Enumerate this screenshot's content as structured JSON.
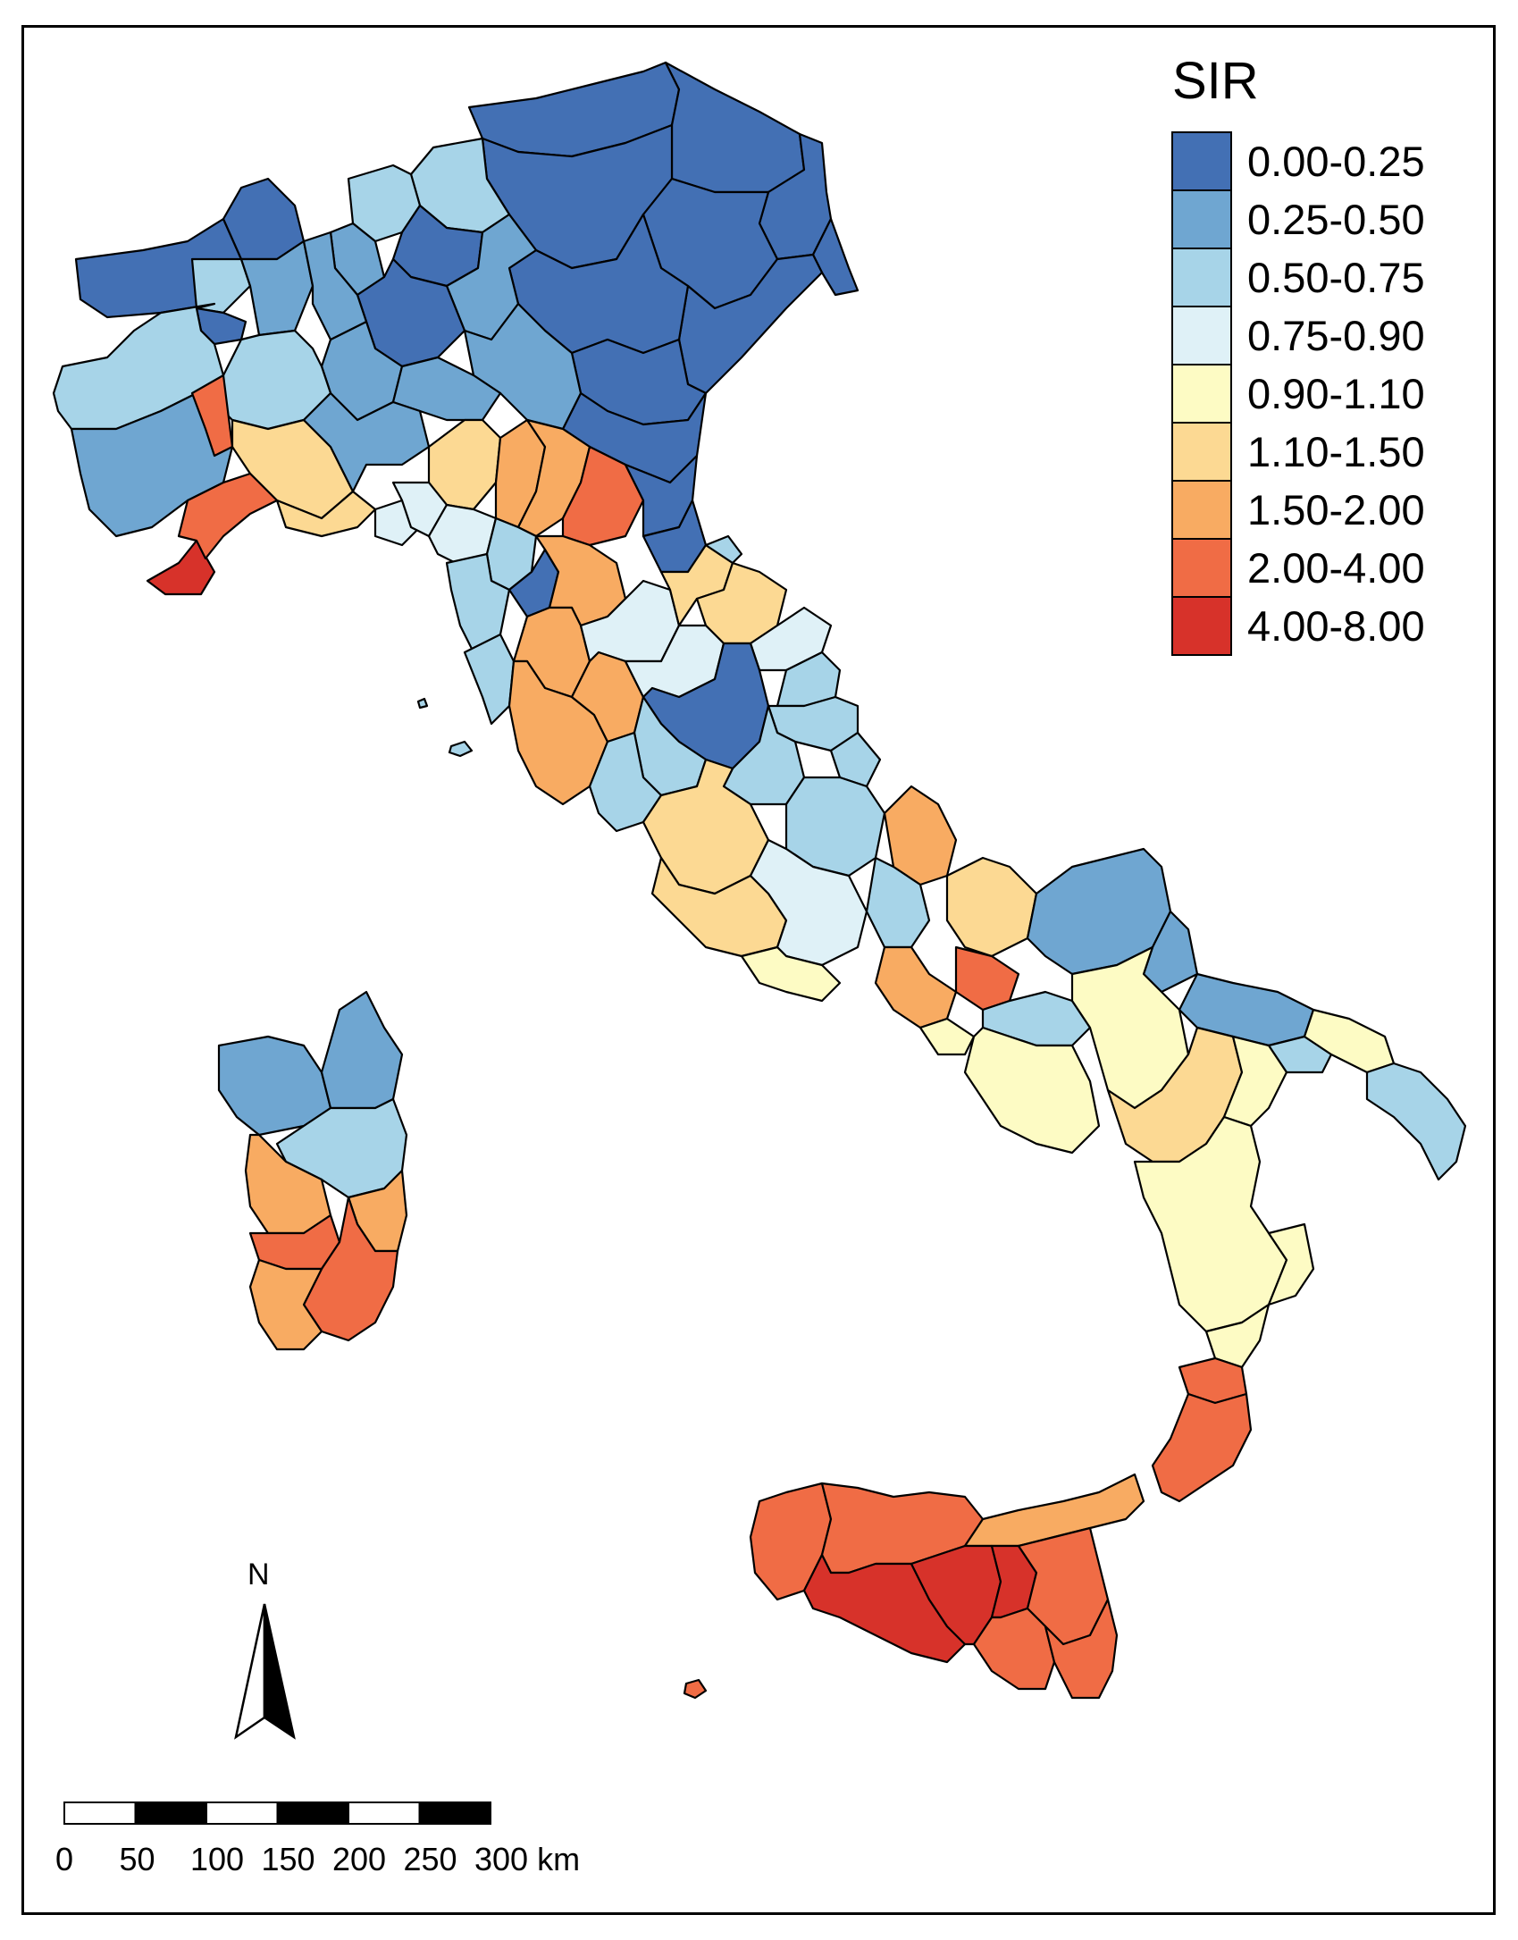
{
  "legend": {
    "title": "SIR",
    "classes": [
      {
        "label": "0.00-0.25",
        "color": "#4370b4"
      },
      {
        "label": "0.25-0.50",
        "color": "#6fa6d1"
      },
      {
        "label": "0.50-0.75",
        "color": "#a7d4e8"
      },
      {
        "label": "0.75-0.90",
        "color": "#dff1f7"
      },
      {
        "label": "0.90-1.10",
        "color": "#fdfbc4"
      },
      {
        "label": "1.10-1.50",
        "color": "#fcd993"
      },
      {
        "label": "1.50-2.00",
        "color": "#f8ab62"
      },
      {
        "label": "2.00-4.00",
        "color": "#f06c45"
      },
      {
        "label": "4.00-8.00",
        "color": "#d7322a"
      }
    ]
  },
  "north_arrow": {
    "label": "N"
  },
  "scale_bar": {
    "ticks": [
      "0",
      "50",
      "100",
      "150",
      "200",
      "250",
      "300 km"
    ]
  }
}
